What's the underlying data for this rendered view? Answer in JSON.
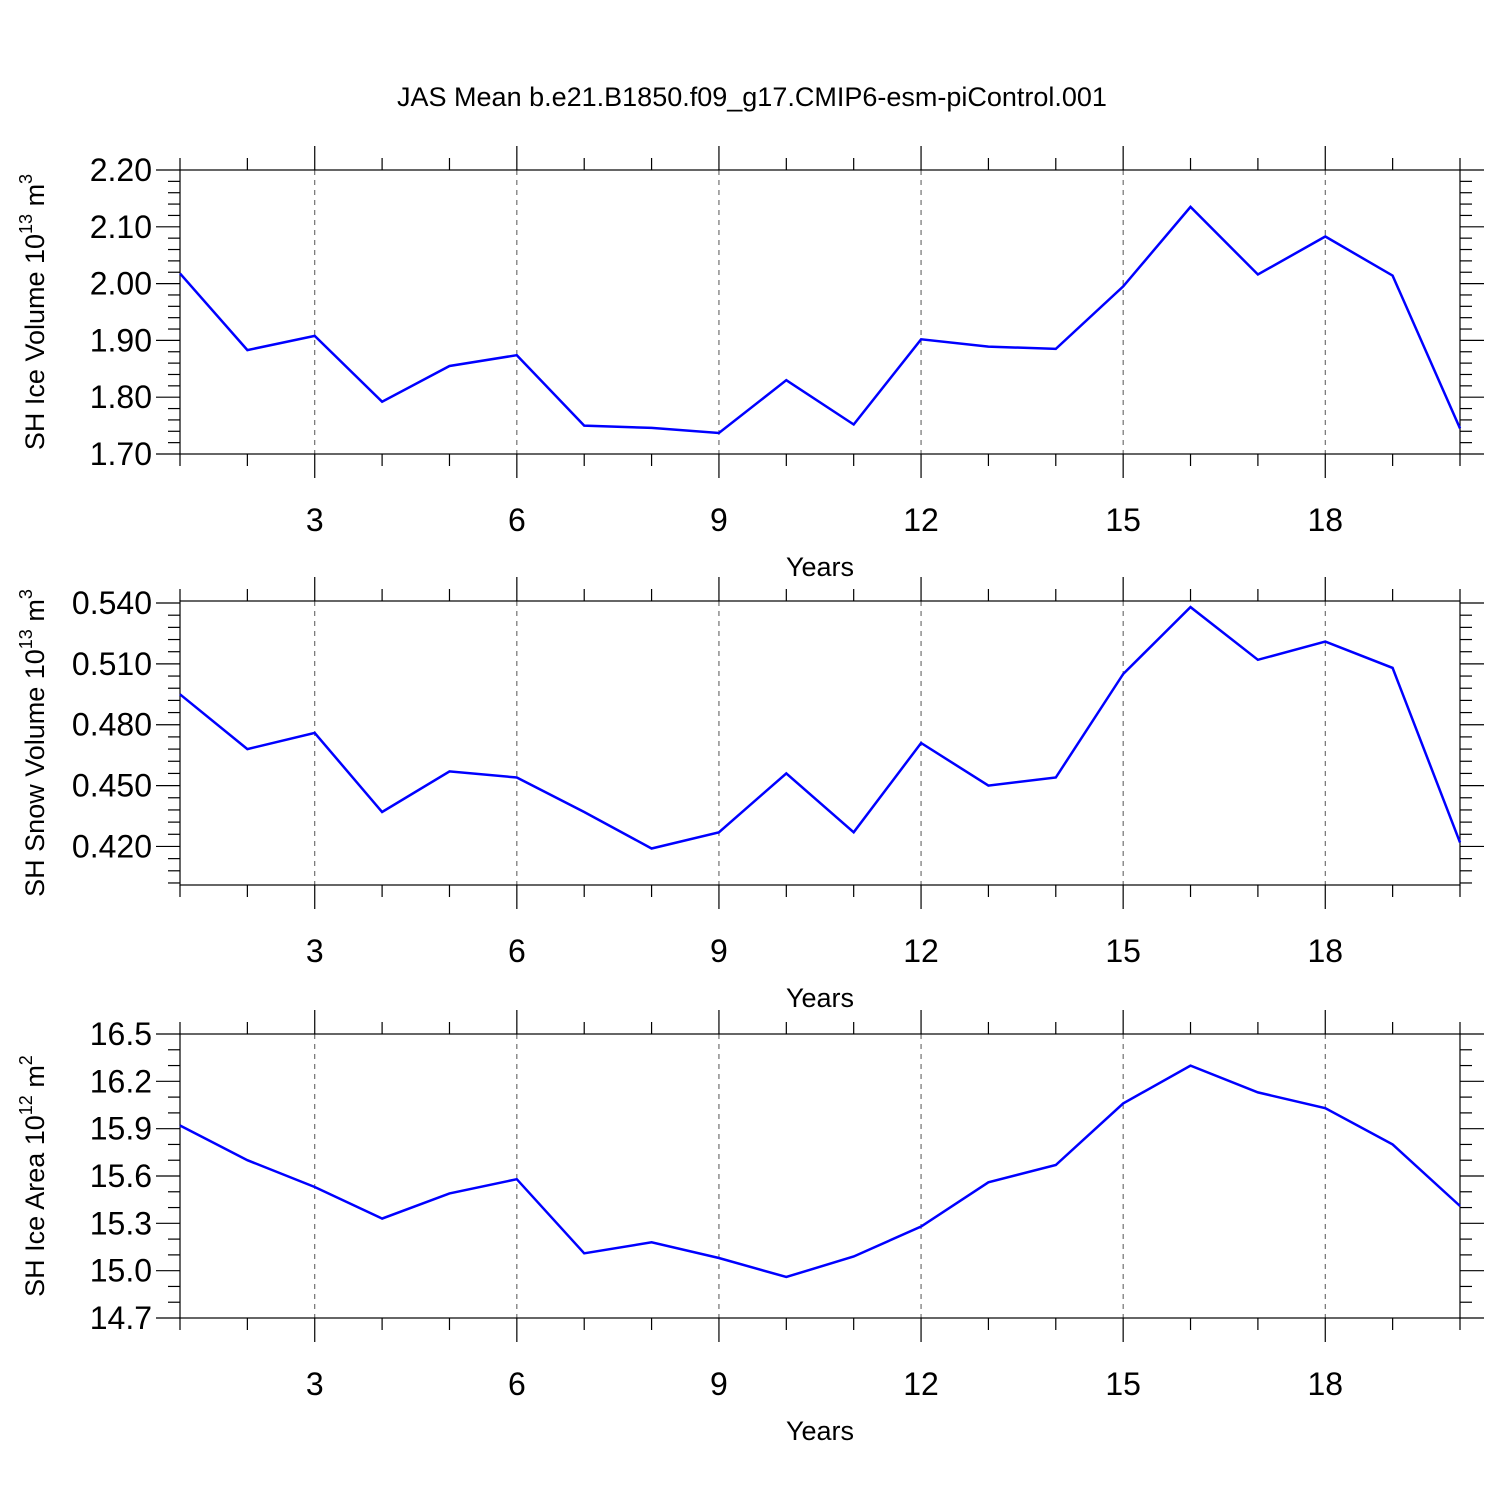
{
  "title": "JAS Mean b.e21.B1850.f09_g17.CMIP6-esm-piControl.001",
  "line_color": "#0000ff",
  "chart_data": [
    {
      "type": "line",
      "xlabel": "Years",
      "ylabel_main": "SH Ice Volume 10",
      "ylabel_exp": "13",
      "ylabel_unit": " m",
      "ylabel_unit_exp": "3",
      "xlim": [
        1,
        20
      ],
      "ylim": [
        1.7,
        2.2
      ],
      "x_ticks": [
        3,
        6,
        9,
        12,
        15,
        18
      ],
      "x_tick_labels": [
        "3",
        "6",
        "9",
        "12",
        "15",
        "18"
      ],
      "y_ticks": [
        1.7,
        1.8,
        1.9,
        2.0,
        2.1,
        2.2
      ],
      "y_tick_labels": [
        "1.70",
        "1.80",
        "1.90",
        "2.00",
        "2.10",
        "2.20"
      ],
      "y_minor_step": 0.02,
      "grid": "vertical dashed at major x ticks",
      "x": [
        1,
        2,
        3,
        4,
        5,
        6,
        7,
        8,
        9,
        10,
        11,
        12,
        13,
        14,
        15,
        16,
        17,
        18,
        19,
        20
      ],
      "values": [
        2.018,
        1.883,
        1.908,
        1.792,
        1.855,
        1.874,
        1.75,
        1.746,
        1.737,
        1.83,
        1.752,
        1.902,
        1.889,
        1.885,
        1.995,
        2.135,
        2.016,
        2.083,
        2.014,
        1.745
      ]
    },
    {
      "type": "line",
      "xlabel": "Years",
      "ylabel_main": "SH Snow Volume 10",
      "ylabel_exp": "13",
      "ylabel_unit": " m",
      "ylabel_unit_exp": "3",
      "xlim": [
        1,
        20
      ],
      "ylim": [
        0.401,
        0.541
      ],
      "x_ticks": [
        3,
        6,
        9,
        12,
        15,
        18
      ],
      "x_tick_labels": [
        "3",
        "6",
        "9",
        "12",
        "15",
        "18"
      ],
      "y_ticks": [
        0.42,
        0.45,
        0.48,
        0.51,
        0.54
      ],
      "y_tick_labels": [
        "0.420",
        "0.450",
        "0.480",
        "0.510",
        "0.540"
      ],
      "y_minor_step": 0.006,
      "grid": "vertical dashed at major x ticks",
      "x": [
        1,
        2,
        3,
        4,
        5,
        6,
        7,
        8,
        9,
        10,
        11,
        12,
        13,
        14,
        15,
        16,
        17,
        18,
        19,
        20
      ],
      "values": [
        0.495,
        0.468,
        0.476,
        0.437,
        0.457,
        0.454,
        0.437,
        0.419,
        0.427,
        0.456,
        0.427,
        0.471,
        0.45,
        0.454,
        0.505,
        0.538,
        0.512,
        0.521,
        0.508,
        0.422
      ]
    },
    {
      "type": "line",
      "xlabel": "Years",
      "ylabel_main": "SH Ice Area 10",
      "ylabel_exp": "12",
      "ylabel_unit": " m",
      "ylabel_unit_exp": "2",
      "xlim": [
        1,
        20
      ],
      "ylim": [
        14.7,
        16.5
      ],
      "x_ticks": [
        3,
        6,
        9,
        12,
        15,
        18
      ],
      "x_tick_labels": [
        "3",
        "6",
        "9",
        "12",
        "15",
        "18"
      ],
      "y_ticks": [
        14.7,
        15.0,
        15.3,
        15.6,
        15.9,
        16.2,
        16.5
      ],
      "y_tick_labels": [
        "14.7",
        "15.0",
        "15.3",
        "15.6",
        "15.9",
        "16.2",
        "16.5"
      ],
      "y_minor_step": 0.1,
      "grid": "vertical dashed at major x ticks",
      "x": [
        1,
        2,
        3,
        4,
        5,
        6,
        7,
        8,
        9,
        10,
        11,
        12,
        13,
        14,
        15,
        16,
        17,
        18,
        19,
        20
      ],
      "values": [
        15.92,
        15.7,
        15.53,
        15.33,
        15.49,
        15.58,
        15.11,
        15.18,
        15.08,
        14.96,
        15.09,
        15.28,
        15.56,
        15.67,
        16.06,
        16.3,
        16.13,
        16.03,
        15.8,
        15.41
      ]
    }
  ]
}
